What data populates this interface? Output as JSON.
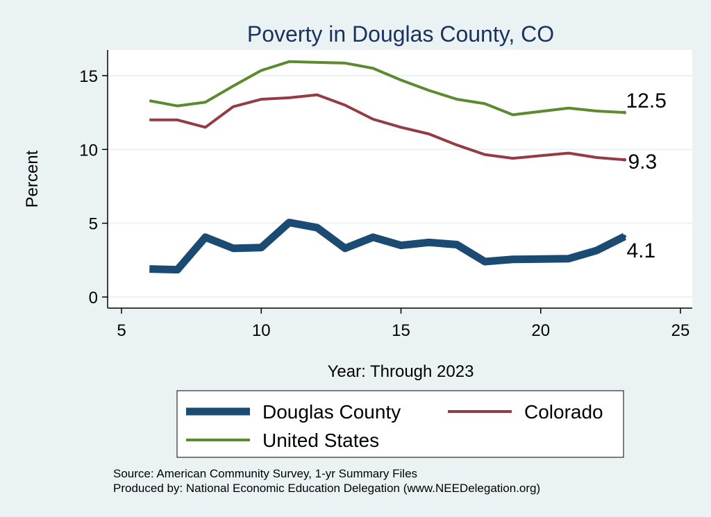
{
  "chart_data": {
    "type": "line",
    "title": "Poverty in Douglas County, CO",
    "xlabel": "Year: Through 2023",
    "ylabel": "Percent",
    "xlim": [
      5,
      25
    ],
    "ylim": [
      0,
      16
    ],
    "xticks": [
      "5",
      "10",
      "15",
      "20",
      "25"
    ],
    "yticks": [
      "0",
      "5",
      "10",
      "15"
    ],
    "series": [
      {
        "name": "Douglas County",
        "color": "#1b4a73",
        "x": [
          6,
          7,
          8,
          9,
          10,
          11,
          12,
          13,
          14,
          15,
          16,
          17,
          18,
          19,
          21,
          22,
          23
        ],
        "values": [
          1.9,
          1.85,
          4.05,
          3.3,
          3.35,
          5.05,
          4.7,
          3.3,
          4.05,
          3.5,
          3.7,
          3.55,
          2.4,
          2.55,
          2.6,
          3.15,
          4.1
        ],
        "end_label": "4.1"
      },
      {
        "name": "Colorado",
        "color": "#943b43",
        "x": [
          6,
          7,
          8,
          9,
          10,
          11,
          12,
          13,
          14,
          15,
          16,
          17,
          18,
          19,
          21,
          22,
          23
        ],
        "values": [
          12.0,
          12.0,
          11.5,
          12.9,
          13.4,
          13.5,
          13.7,
          13.0,
          12.05,
          11.5,
          11.05,
          10.3,
          9.65,
          9.4,
          9.75,
          9.45,
          9.3
        ],
        "end_label": "9.3"
      },
      {
        "name": "United States",
        "color": "#5c8a30",
        "x": [
          6,
          7,
          8,
          9,
          10,
          11,
          12,
          13,
          14,
          15,
          16,
          17,
          18,
          19,
          21,
          22,
          23
        ],
        "values": [
          13.3,
          12.95,
          13.2,
          14.3,
          15.35,
          15.95,
          15.9,
          15.85,
          15.5,
          14.7,
          14.0,
          13.4,
          13.1,
          12.35,
          12.8,
          12.6,
          12.5
        ],
        "end_label": "12.5"
      }
    ],
    "legend": {
      "placement": "bottom",
      "entries": [
        "Douglas County",
        "Colorado",
        "United States"
      ]
    },
    "notes": [
      "Source: American Community Survey, 1-yr Summary Files",
      "Produced by: National Economic Education Delegation (www.NEEDelegation.org)"
    ]
  }
}
